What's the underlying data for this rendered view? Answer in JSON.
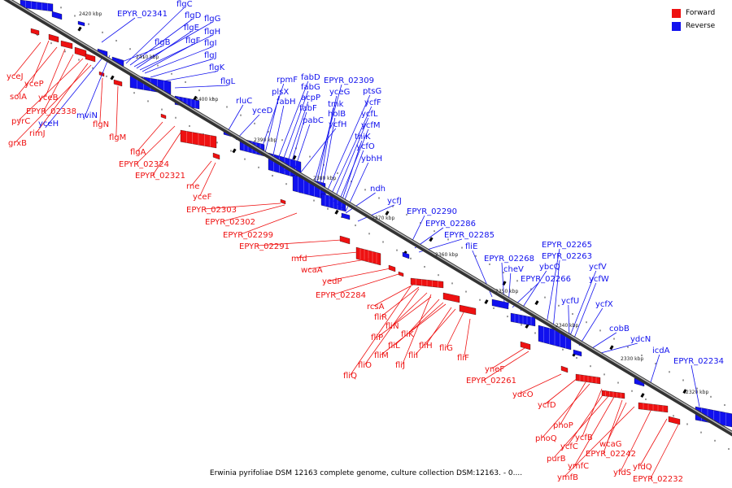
{
  "legend": {
    "forward_label": "Forward",
    "reverse_label": "Reverse",
    "forward_color": "#ee1111",
    "reverse_color": "#1111ee"
  },
  "caption": "Erwinia pyrifoliae DSM 12163 complete genome, culture collection DSM:12163. - 0....",
  "axis_ticks": [
    "2420 kbp",
    "2410 kbp",
    "2400 kbp",
    "2390 kbp",
    "2380 kbp",
    "2370 kbp",
    "2360 kbp",
    "2350 kbp",
    "2340 kbp",
    "2330 kbp",
    "2320 kbp"
  ],
  "forward_genes": [
    "yceJ",
    "yceP",
    "solA",
    "yceB",
    "EPYR_02338",
    "pyrC",
    "rimJ",
    "grxB",
    "flgN",
    "flgM",
    "flgA",
    "EPYR_02324",
    "EPYR_02321",
    "rne",
    "yceF",
    "EPYR_02303",
    "EPYR_02302",
    "EPYR_02299",
    "EPYR_02291",
    "mfd",
    "wcaA",
    "yedP",
    "EPYR_02284",
    "rcsA",
    "fliR",
    "fliN",
    "fliP",
    "fliK",
    "fliL",
    "fliM",
    "fliH",
    "fliI",
    "fliG",
    "fliO",
    "fliJ",
    "fliF",
    "fliQ",
    "yneF",
    "EPYR_02261",
    "ydcO",
    "ycfD",
    "phoP",
    "phoQ",
    "ycfB",
    "ycfC",
    "purB",
    "ymfC",
    "EPYR_02242",
    "wcaG",
    "ymfB",
    "yfdS",
    "yfdQ",
    "EPYR_02232"
  ],
  "reverse_genes": [
    "EPYR_02341",
    "flgC",
    "flgD",
    "flgG",
    "flgE",
    "flgH",
    "flgB",
    "flgF",
    "flgI",
    "flgJ",
    "flgK",
    "flgL",
    "mviN",
    "yceH",
    "rluC",
    "yceD",
    "rpmF",
    "plsX",
    "fabD",
    "fabG",
    "fabH",
    "acpP",
    "EPYR_02309",
    "yceG",
    "fabF",
    "tmk",
    "ptsG",
    "ycfF",
    "pabC",
    "holB",
    "ycfL",
    "ycfH",
    "ycfM",
    "thiK",
    "ycfO",
    "ybhH",
    "ndh",
    "ycfJ",
    "EPYR_02290",
    "EPYR_02286",
    "EPYR_02285",
    "fliE",
    "EPYR_02268",
    "cheV",
    "ybcQ",
    "EPYR_02265",
    "EPYR_02263",
    "ycfV",
    "EPYR_02266",
    "ycfW",
    "ycfU",
    "ycfX",
    "cobB",
    "ydcN",
    "icdA",
    "EPYR_02234"
  ]
}
